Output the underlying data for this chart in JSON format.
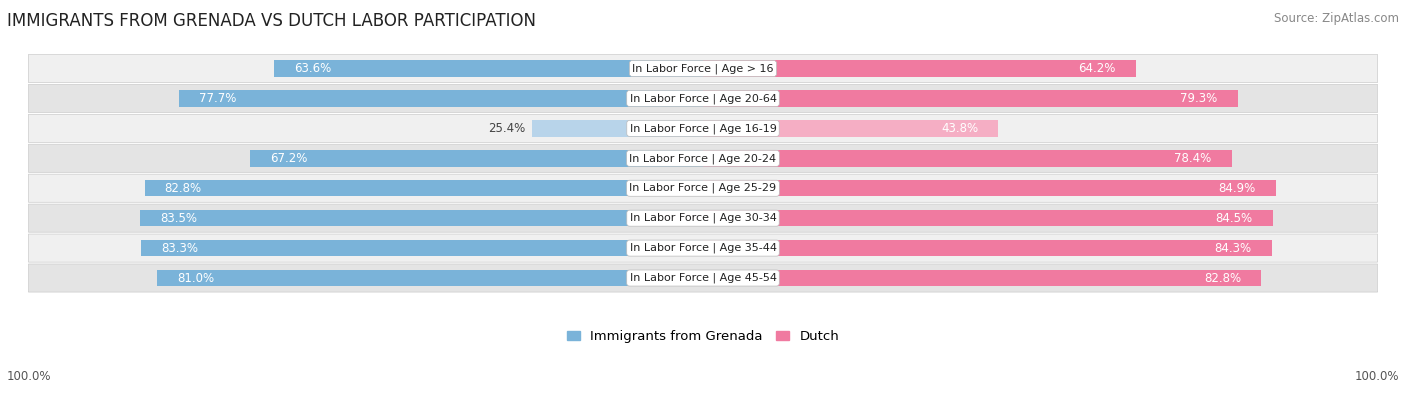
{
  "title": "IMMIGRANTS FROM GRENADA VS DUTCH LABOR PARTICIPATION",
  "source": "Source: ZipAtlas.com",
  "categories": [
    "In Labor Force | Age > 16",
    "In Labor Force | Age 20-64",
    "In Labor Force | Age 16-19",
    "In Labor Force | Age 20-24",
    "In Labor Force | Age 25-29",
    "In Labor Force | Age 30-34",
    "In Labor Force | Age 35-44",
    "In Labor Force | Age 45-54"
  ],
  "grenada_values": [
    63.6,
    77.7,
    25.4,
    67.2,
    82.8,
    83.5,
    83.3,
    81.0
  ],
  "dutch_values": [
    64.2,
    79.3,
    43.8,
    78.4,
    84.9,
    84.5,
    84.3,
    82.8
  ],
  "grenada_color": "#7ab3d9",
  "grenada_color_light": "#b8d4ea",
  "dutch_color": "#f07aa0",
  "dutch_color_light": "#f5aec4",
  "row_bg_even": "#f0f0f0",
  "row_bg_odd": "#e4e4e4",
  "title_fontsize": 12,
  "source_fontsize": 8.5,
  "bar_label_fontsize": 8.5,
  "category_fontsize": 8,
  "legend_fontsize": 9.5,
  "footer_fontsize": 8.5,
  "max_value": 100.0,
  "footer_label": "100.0%"
}
